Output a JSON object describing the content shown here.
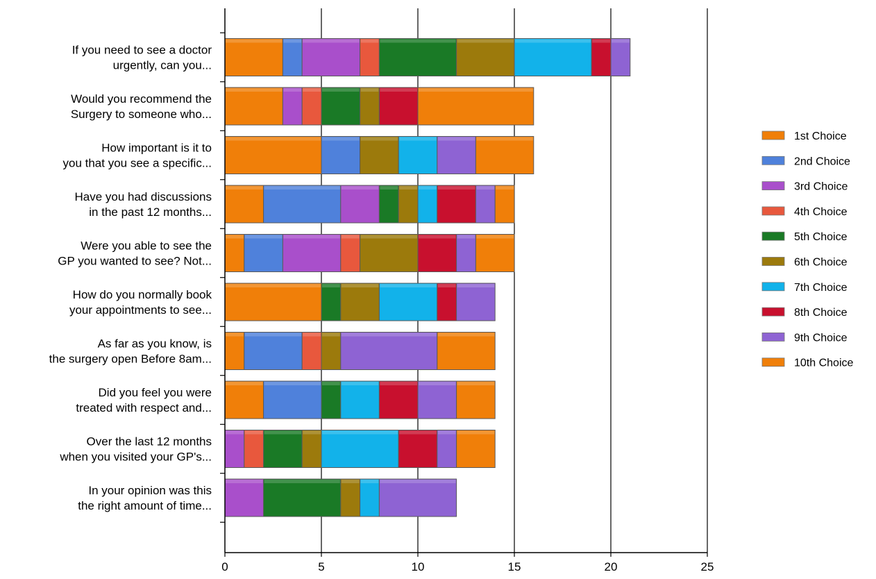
{
  "chart_data": {
    "type": "bar",
    "orientation": "horizontal",
    "stacked": true,
    "categories": [
      "If you need to see a doctor urgently, can you...",
      "Would you recommend the Surgery  to someone who...",
      "How important is it to you that you see a specific...",
      "Have you had discussions in the past 12 months...",
      "Were you able to see the GP you wanted to see? Not...",
      "How do you normally book your appointments to see...",
      "As far as you know, is the surgery open Before 8am...",
      "Did you feel you were treated with respect and...",
      "Over the last 12 months when you visited your GP's...",
      "In your opinion was this the right amount of time..."
    ],
    "category_lines": [
      [
        "If you need to see a doctor",
        "urgently, can you..."
      ],
      [
        "Would you recommend the",
        "Surgery  to someone who..."
      ],
      [
        "How important is it to",
        "you that you see a specific..."
      ],
      [
        "Have you had discussions",
        "in the past 12 months..."
      ],
      [
        "Were you able to see the",
        "GP you wanted to see? Not..."
      ],
      [
        "How do you normally book",
        "your appointments to see..."
      ],
      [
        "As far as you know, is",
        "the surgery open Before 8am..."
      ],
      [
        "Did you feel you were",
        "treated with respect and..."
      ],
      [
        "Over the last 12 months",
        "when you visited your GP's..."
      ],
      [
        "In your opinion was this",
        "the right amount of time..."
      ]
    ],
    "series": [
      {
        "name": "1st Choice",
        "color": "#F07F09",
        "values": [
          3,
          3,
          5,
          2,
          1,
          5,
          1,
          2,
          0,
          0
        ]
      },
      {
        "name": "2nd Choice",
        "color": "#4F81DB",
        "values": [
          1,
          0,
          2,
          4,
          2,
          0,
          3,
          3,
          0,
          0
        ]
      },
      {
        "name": "3rd Choice",
        "color": "#A94FCB",
        "values": [
          3,
          1,
          0,
          2,
          3,
          0,
          0,
          0,
          1,
          2
        ]
      },
      {
        "name": "4th Choice",
        "color": "#E8583D",
        "values": [
          1,
          1,
          0,
          0,
          1,
          0,
          1,
          0,
          1,
          0
        ]
      },
      {
        "name": "5th Choice",
        "color": "#1A7A26",
        "values": [
          4,
          2,
          0,
          1,
          0,
          1,
          0,
          1,
          2,
          4
        ]
      },
      {
        "name": "6th Choice",
        "color": "#9C7A0C",
        "values": [
          3,
          1,
          2,
          1,
          3,
          2,
          1,
          0,
          1,
          1
        ]
      },
      {
        "name": "7th Choice",
        "color": "#12B2EA",
        "values": [
          4,
          0,
          2,
          1,
          0,
          3,
          0,
          2,
          4,
          1
        ]
      },
      {
        "name": "8th Choice",
        "color": "#C8102E",
        "values": [
          1,
          2,
          0,
          2,
          2,
          1,
          0,
          2,
          2,
          0
        ]
      },
      {
        "name": "9th Choice",
        "color": "#8E63D3",
        "values": [
          1,
          0,
          2,
          1,
          1,
          2,
          5,
          2,
          1,
          4
        ]
      },
      {
        "name": "10th Choice",
        "color": "#F07F09",
        "values": [
          0,
          6,
          3,
          1,
          2,
          0,
          3,
          2,
          2,
          0
        ]
      }
    ],
    "xlim": [
      0,
      25
    ],
    "xticks": [
      0,
      5,
      10,
      15,
      20,
      25
    ],
    "grid": "vertical",
    "legend": "right",
    "title": "",
    "xlabel": "",
    "ylabel": ""
  }
}
